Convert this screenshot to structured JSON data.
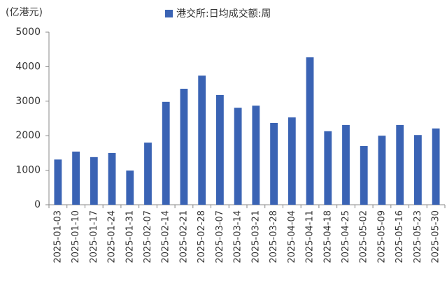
{
  "chart_data": {
    "type": "bar",
    "unit_label": "(亿港元)",
    "categories": [
      "2025-01-03",
      "2025-01-10",
      "2025-01-17",
      "2025-01-24",
      "2025-01-31",
      "2025-02-07",
      "2025-02-14",
      "2025-02-21",
      "2025-02-28",
      "2025-03-07",
      "2025-03-14",
      "2025-03-21",
      "2025-03-28",
      "2025-04-04",
      "2025-04-11",
      "2025-04-18",
      "2025-04-25",
      "2025-05-02",
      "2025-05-09",
      "2025-05-16",
      "2025-05-23",
      "2025-05-30"
    ],
    "series": [
      {
        "name": "港交所:日均成交额:周",
        "color": "#3a63b4",
        "values": [
          1310,
          1540,
          1380,
          1500,
          990,
          1800,
          2980,
          3360,
          3740,
          3180,
          2810,
          2870,
          2370,
          2530,
          4270,
          2130,
          2310,
          1700,
          2000,
          2310,
          2020,
          2210
        ]
      }
    ],
    "ylim": [
      0,
      5000
    ],
    "yticks": [
      0,
      1000,
      2000,
      3000,
      4000,
      5000
    ],
    "grid": false,
    "legend": "top"
  }
}
